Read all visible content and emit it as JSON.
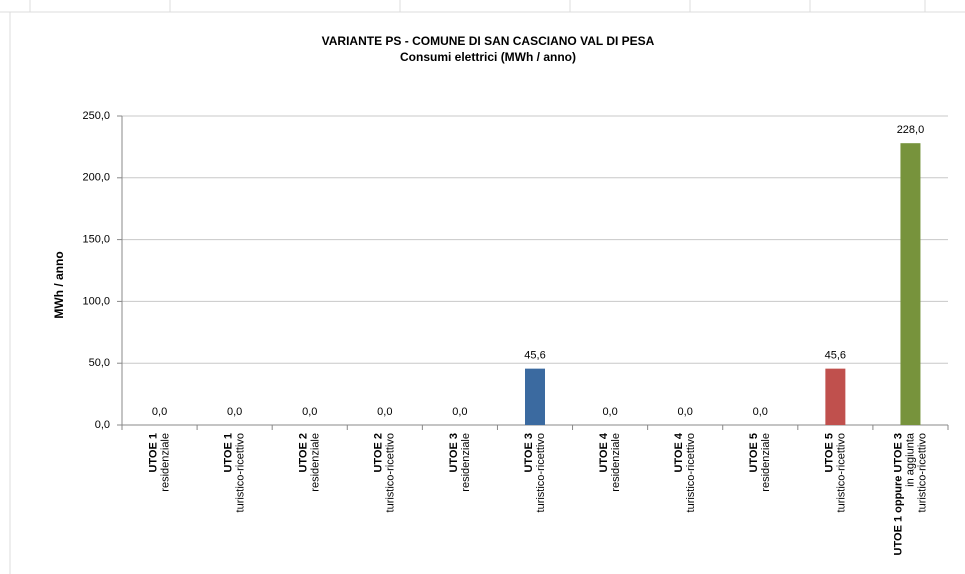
{
  "chart_data": {
    "type": "bar",
    "title": "VARIANTE PS - COMUNE DI SAN CASCIANO VAL DI PESA",
    "subtitle": "Consumi elettrici (MWh / anno)",
    "y_label": "MWh / anno",
    "categories": [
      [
        "UTOE 1",
        "residenziale"
      ],
      [
        "UTOE 1",
        "turistico-ricettivo"
      ],
      [
        "UTOE 2",
        "residenziale"
      ],
      [
        "UTOE 2",
        "turistico-ricettivo"
      ],
      [
        "UTOE 3",
        "residenziale"
      ],
      [
        "UTOE 3",
        "turistico-ricettivo"
      ],
      [
        "UTOE 4",
        "residenziale"
      ],
      [
        "UTOE 4",
        "turistico-ricettivo"
      ],
      [
        "UTOE 5",
        "residenziale"
      ],
      [
        "UTOE 5",
        "turistico-ricettivo"
      ],
      [
        "UTOE 1 oppure UTOE 3",
        "in aggiunta",
        "turistico-ricettivo"
      ]
    ],
    "values": [
      0,
      0,
      0,
      0,
      0,
      45.6,
      0,
      0,
      0,
      45.6,
      228
    ],
    "value_labels": [
      "0,0",
      "0,0",
      "0,0",
      "0,0",
      "0,0",
      "45,6",
      "0,0",
      "0,0",
      "0,0",
      "45,6",
      "228,0"
    ],
    "colors": [
      "#4f81bd",
      "#4f81bd",
      "#4f81bd",
      "#4f81bd",
      "#4f81bd",
      "#3b6aa0",
      "#4f81bd",
      "#4f81bd",
      "#4f81bd",
      "#c0504d",
      "#77933c"
    ],
    "ylim": [
      0,
      250
    ],
    "yticks": [
      {
        "value": 0,
        "label": "0,0"
      },
      {
        "value": 50,
        "label": "50,0"
      },
      {
        "value": 100,
        "label": "100,0"
      },
      {
        "value": 150,
        "label": "150,0"
      },
      {
        "value": 200,
        "label": "200,0"
      },
      {
        "value": 250,
        "label": "250,0"
      }
    ],
    "grid": true
  }
}
